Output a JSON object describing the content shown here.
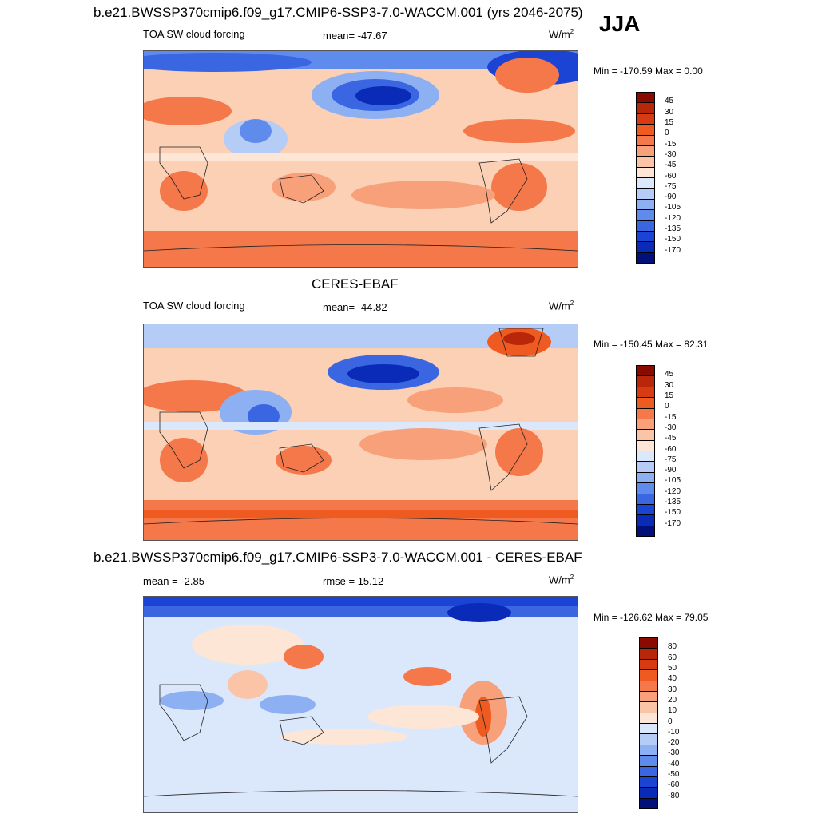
{
  "figure": {
    "title": "b.e21.BWSSP370cmip6.f09_g17.CMIP6-SSP3-7.0-WACCM.001 (yrs 2046-2075)",
    "season": "JJA"
  },
  "panels": [
    {
      "id": "model",
      "header": "",
      "left_label": "TOA SW cloud forcing",
      "center_label": "mean= -47.67",
      "units_base": "W/m",
      "units_exp": "2",
      "minmax": "Min = -170.59 Max =   0.00"
    },
    {
      "id": "obs",
      "header": "CERES-EBAF",
      "left_label": "TOA SW cloud forcing",
      "center_label": "mean= -44.82",
      "units_base": "W/m",
      "units_exp": "2",
      "minmax": "Min = -150.45 Max =  82.31"
    },
    {
      "id": "diff",
      "header": "b.e21.BWSSP370cmip6.f09_g17.CMIP6-SSP3-7.0-WACCM.001 - CERES-EBAF",
      "left_label": "mean =  -2.85",
      "center_label": "rmse =  15.12",
      "units_base": "W/m",
      "units_exp": "2",
      "minmax": "Min = -126.62 Max =  79.05"
    }
  ],
  "colorbars": {
    "forcing": {
      "levels": [
        "45",
        "30",
        "15",
        "0",
        "-15",
        "-30",
        "-45",
        "-60",
        "-75",
        "-90",
        "-105",
        "-120",
        "-135",
        "-150",
        "-170"
      ],
      "colors": [
        "#8a0a00",
        "#b8270a",
        "#d83b12",
        "#ee5a20",
        "#f4784a",
        "#f8a07a",
        "#fcc4a6",
        "#fde6d6",
        "#dbe8fb",
        "#b5cdf6",
        "#8cb0f2",
        "#5f8cec",
        "#3a66e2",
        "#1b44d4",
        "#0a2ab8",
        "#02117a"
      ]
    },
    "difference": {
      "levels": [
        "80",
        "60",
        "50",
        "40",
        "30",
        "20",
        "10",
        "0",
        "-10",
        "-20",
        "-30",
        "-40",
        "-50",
        "-60",
        "-80"
      ],
      "colors": [
        "#8a0a00",
        "#b8270a",
        "#d83b12",
        "#ee5a20",
        "#f4784a",
        "#f8a07a",
        "#fcc4a6",
        "#fde6d6",
        "#dbe8fb",
        "#b5cdf6",
        "#8cb0f2",
        "#5f8cec",
        "#3a66e2",
        "#1b44d4",
        "#0a2ab8",
        "#02117a"
      ]
    }
  }
}
